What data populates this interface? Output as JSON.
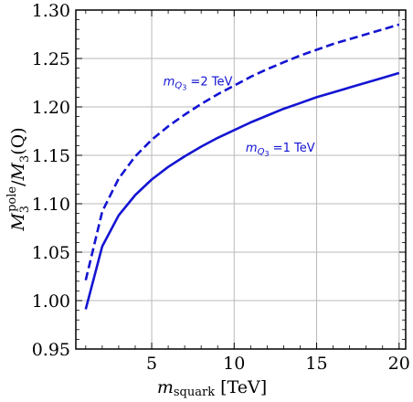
{
  "chart_data": {
    "type": "line",
    "xlabel": {
      "var": "m",
      "sub": "squark",
      "unit": " [TeV]"
    },
    "ylabel": {
      "num": "M",
      "num_sub": "3",
      "num_sup": "pole",
      "den": "M",
      "den_sub": "3",
      "den_arg": "(Q)"
    },
    "xlim": [
      0.4,
      20.4
    ],
    "ylim": [
      0.95,
      1.3
    ],
    "xticks": [
      5,
      10,
      15,
      20
    ],
    "yticks": [
      "0.95",
      "1.00",
      "1.05",
      "1.10",
      "1.15",
      "1.20",
      "1.25",
      "1.30"
    ],
    "grid": true,
    "series": [
      {
        "name": "m_Q3=1 TeV",
        "style": "solid",
        "color": "#1414d2",
        "x": [
          1,
          2,
          3,
          4,
          5,
          6,
          7,
          8,
          9,
          10,
          11,
          12,
          13,
          14,
          15,
          16,
          17,
          18,
          19,
          20
        ],
        "y": [
          0.991,
          1.056,
          1.088,
          1.109,
          1.125,
          1.138,
          1.149,
          1.159,
          1.168,
          1.176,
          1.184,
          1.191,
          1.198,
          1.204,
          1.21,
          1.215,
          1.22,
          1.225,
          1.23,
          1.235
        ]
      },
      {
        "name": "m_Q3=2 TeV",
        "style": "dashed",
        "color": "#1414d2",
        "x": [
          1,
          2,
          3,
          4,
          5,
          6,
          7,
          8,
          9,
          10,
          11,
          12,
          13,
          14,
          15,
          16,
          17,
          18,
          19,
          20
        ],
        "y": [
          1.021,
          1.092,
          1.126,
          1.149,
          1.166,
          1.18,
          1.192,
          1.203,
          1.213,
          1.222,
          1.231,
          1.239,
          1.246,
          1.253,
          1.259,
          1.265,
          1.27,
          1.275,
          1.28,
          1.285
        ]
      }
    ],
    "annotations": [
      {
        "id": "upper",
        "prefix": "m",
        "sub": "Q",
        "subsub": "3",
        "text": " =2 TeV",
        "x": 5.7,
        "y": 1.222
      },
      {
        "id": "lower",
        "prefix": "m",
        "sub": "Q",
        "subsub": "3",
        "text": " =1 TeV",
        "x": 10.7,
        "y": 1.154
      }
    ]
  }
}
